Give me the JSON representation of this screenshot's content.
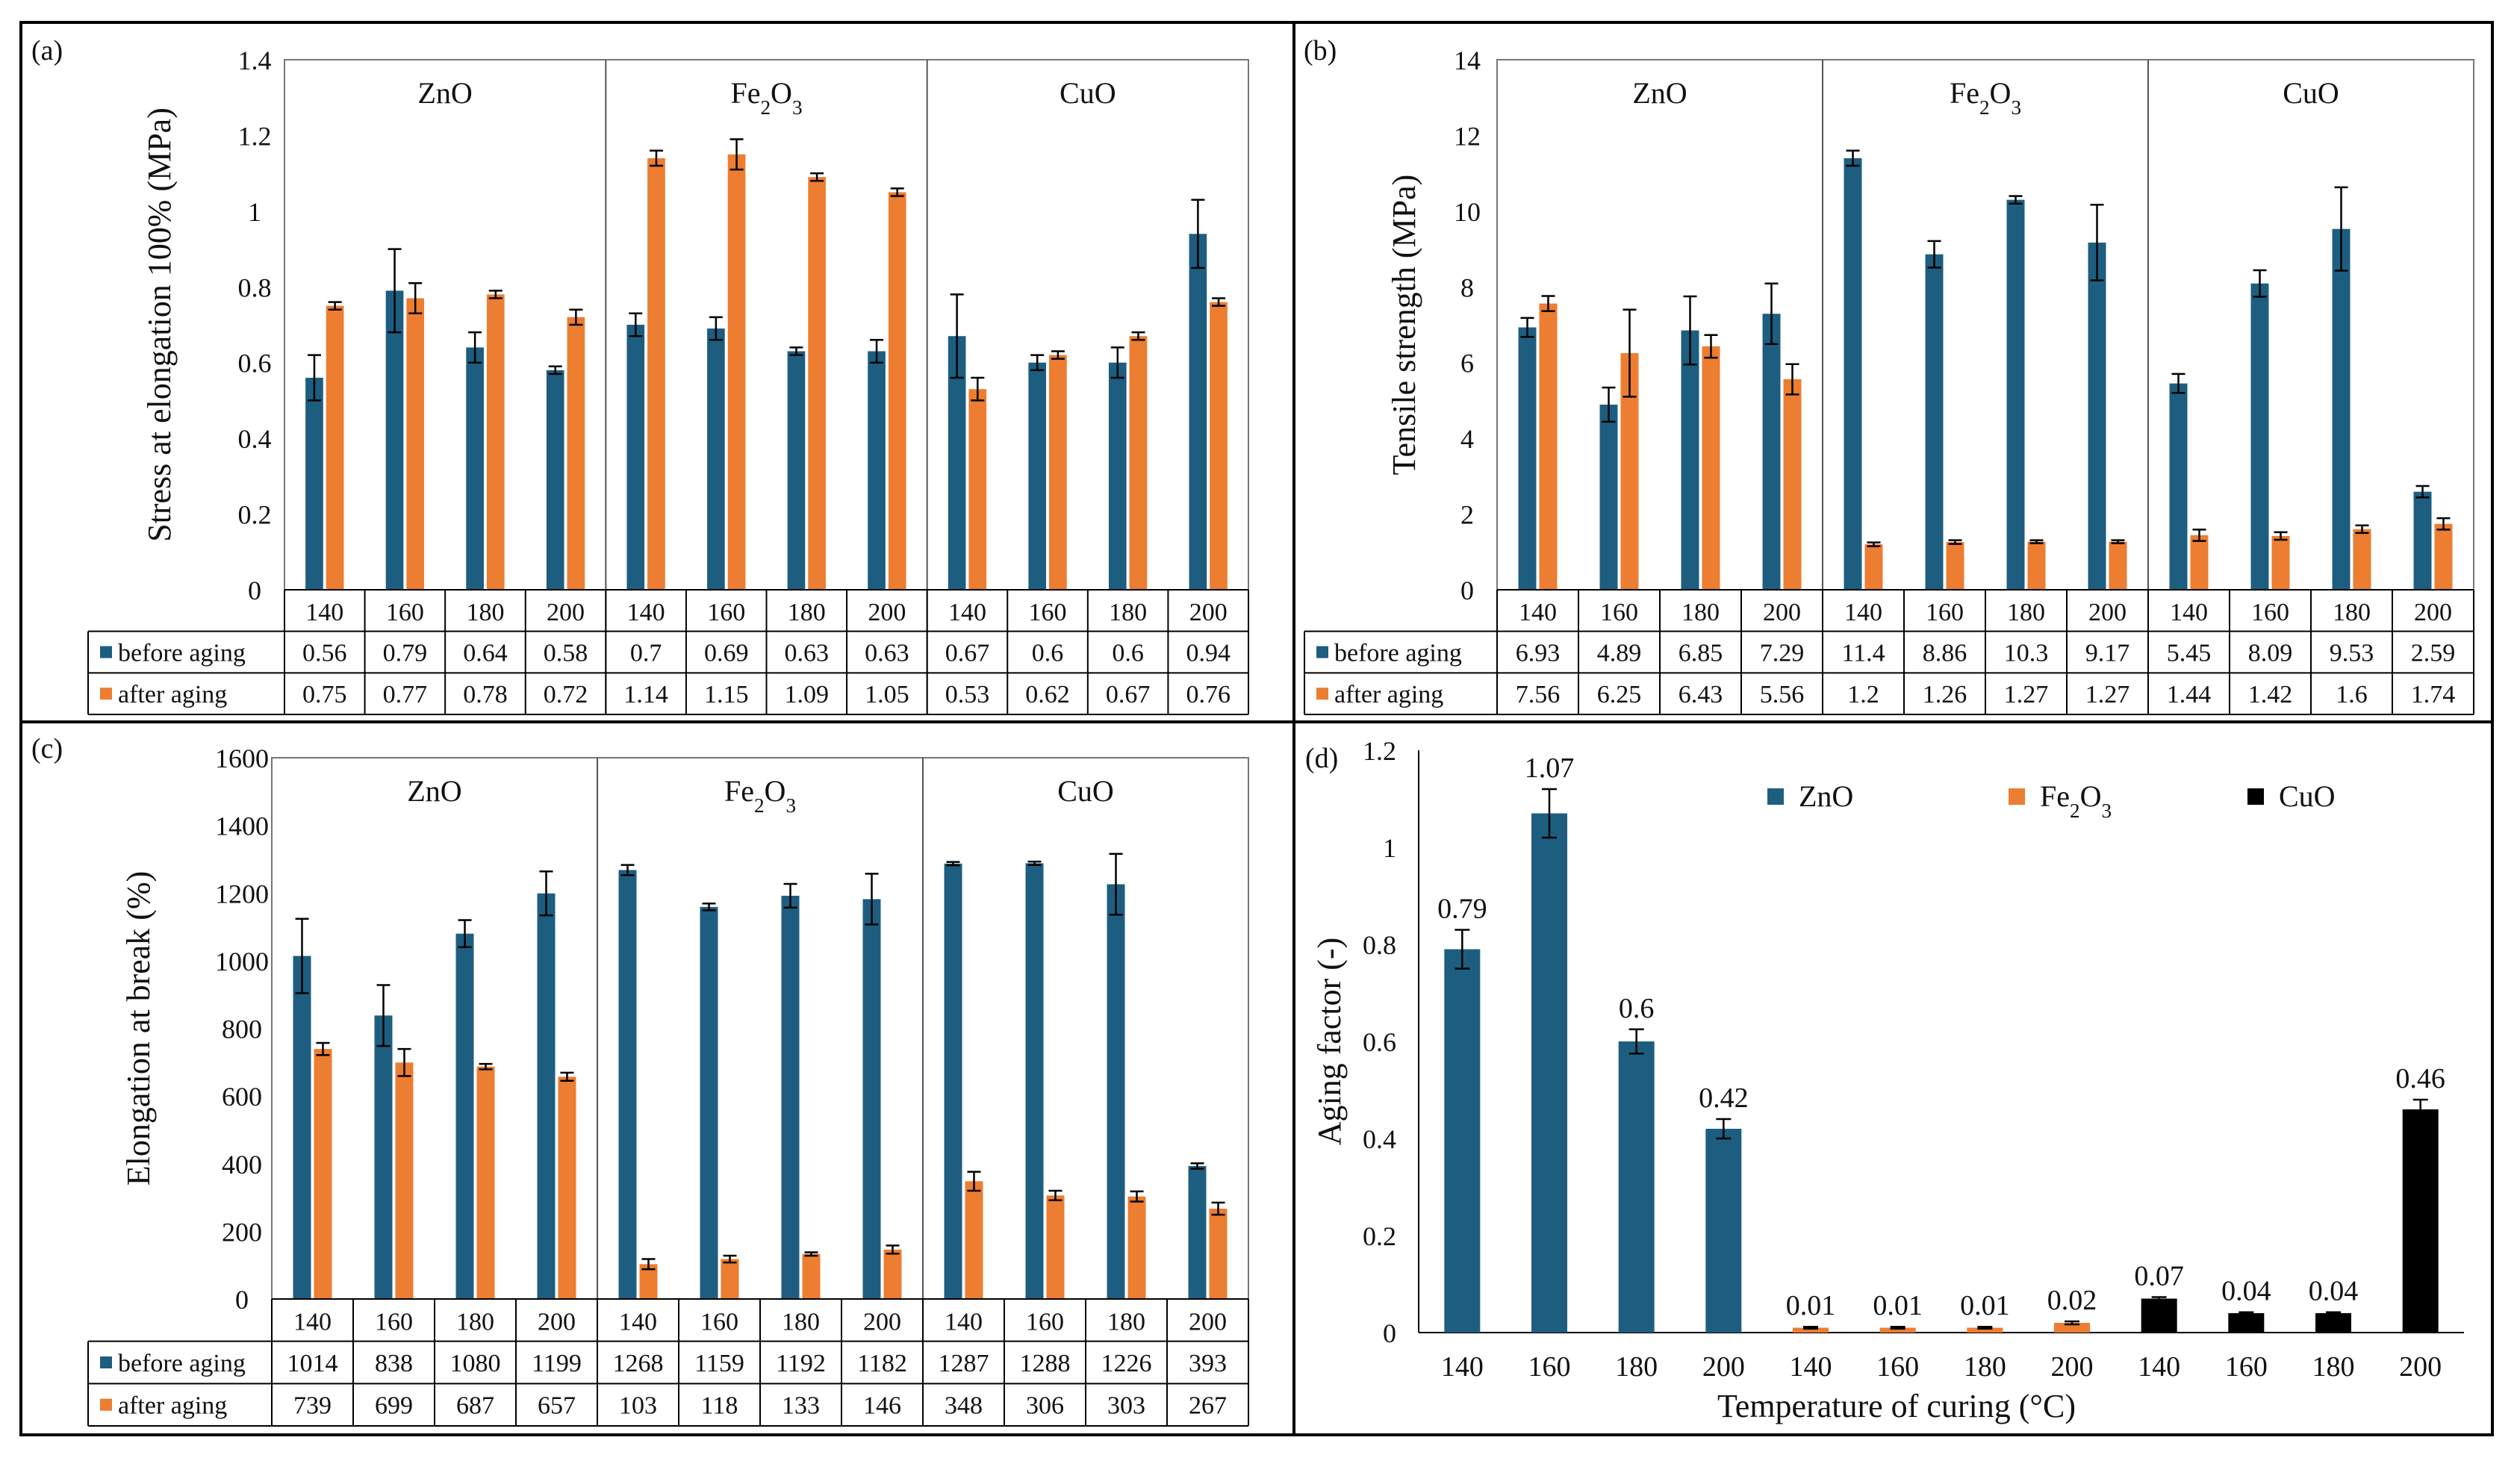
{
  "figure": {
    "colors": {
      "before": "#1d5e80",
      "after": "#ed7d31",
      "cuo": "#000000",
      "axis": "#000000",
      "grid": "#000000"
    }
  },
  "chart_data": [
    {
      "panel": "(a)",
      "type": "bar",
      "ylabel": "Stress at elongation 100% (MPa)",
      "ylim": [
        0,
        1.4
      ],
      "yticks": [
        "0",
        "0.2",
        "0.4",
        "0.6",
        "0.8",
        "1",
        "1.2",
        "1.4"
      ],
      "groups": [
        {
          "name": "ZnO",
          "sub": ""
        },
        {
          "name": "Fe",
          "sub": "2",
          "name2": "O",
          "sub2": "3"
        },
        {
          "name": "CuO",
          "sub": ""
        }
      ],
      "categories": [
        "140",
        "160",
        "180",
        "200",
        "140",
        "160",
        "180",
        "200",
        "140",
        "160",
        "180",
        "200"
      ],
      "series": [
        {
          "name": "before aging",
          "values": [
            0.56,
            0.79,
            0.64,
            0.58,
            0.7,
            0.69,
            0.63,
            0.63,
            0.67,
            0.6,
            0.6,
            0.94
          ],
          "errors": [
            0.06,
            0.11,
            0.04,
            0.01,
            0.03,
            0.03,
            0.01,
            0.03,
            0.11,
            0.02,
            0.04,
            0.09
          ],
          "labels": [
            "0.56",
            "0.79",
            "0.64",
            "0.58",
            "0.7",
            "0.69",
            "0.63",
            "0.63",
            "0.67",
            "0.6",
            "0.6",
            "0.94"
          ]
        },
        {
          "name": "after aging",
          "values": [
            0.75,
            0.77,
            0.78,
            0.72,
            1.14,
            1.15,
            1.09,
            1.05,
            0.53,
            0.62,
            0.67,
            0.76
          ],
          "errors": [
            0.01,
            0.04,
            0.01,
            0.02,
            0.02,
            0.04,
            0.01,
            0.01,
            0.03,
            0.01,
            0.01,
            0.01
          ],
          "labels": [
            "0.75",
            "0.77",
            "0.78",
            "0.72",
            "1.14",
            "1.15",
            "1.09",
            "1.05",
            "0.53",
            "0.62",
            "0.67",
            "0.76"
          ]
        }
      ]
    },
    {
      "panel": "(b)",
      "type": "bar",
      "ylabel": "Tensile strength (MPa)",
      "ylim": [
        0,
        14
      ],
      "yticks": [
        "0",
        "2",
        "4",
        "6",
        "8",
        "10",
        "12",
        "14"
      ],
      "groups": [
        {
          "name": "ZnO",
          "sub": ""
        },
        {
          "name": "Fe",
          "sub": "2",
          "name2": "O",
          "sub2": "3"
        },
        {
          "name": "CuO",
          "sub": ""
        }
      ],
      "categories": [
        "140",
        "160",
        "180",
        "200",
        "140",
        "160",
        "180",
        "200",
        "140",
        "160",
        "180",
        "200"
      ],
      "series": [
        {
          "name": "before aging",
          "values": [
            6.93,
            4.89,
            6.85,
            7.29,
            11.4,
            8.86,
            10.3,
            9.17,
            5.45,
            8.09,
            9.53,
            2.59
          ],
          "errors": [
            0.25,
            0.45,
            0.9,
            0.8,
            0.2,
            0.35,
            0.1,
            1.0,
            0.25,
            0.35,
            1.1,
            0.15
          ],
          "labels": [
            "6.93",
            "4.89",
            "6.85",
            "7.29",
            "11.4",
            "8.86",
            "10.3",
            "9.17",
            "5.45",
            "8.09",
            "9.53",
            "2.59"
          ]
        },
        {
          "name": "after aging",
          "values": [
            7.56,
            6.25,
            6.43,
            5.56,
            1.2,
            1.26,
            1.27,
            1.27,
            1.44,
            1.42,
            1.6,
            1.74
          ],
          "errors": [
            0.2,
            1.15,
            0.3,
            0.4,
            0.05,
            0.05,
            0.04,
            0.04,
            0.15,
            0.1,
            0.1,
            0.15
          ],
          "labels": [
            "7.56",
            "6.25",
            "6.43",
            "5.56",
            "1.2",
            "1.26",
            "1.27",
            "1.27",
            "1.44",
            "1.42",
            "1.6",
            "1.74"
          ]
        }
      ]
    },
    {
      "panel": "(c)",
      "type": "bar",
      "ylabel": "Elongation at break (%)",
      "ylim": [
        0,
        1600
      ],
      "yticks": [
        "0",
        "200",
        "400",
        "600",
        "800",
        "1000",
        "1200",
        "1400",
        "1600"
      ],
      "groups": [
        {
          "name": "ZnO",
          "sub": ""
        },
        {
          "name": "Fe",
          "sub": "2",
          "name2": "O",
          "sub2": "3"
        },
        {
          "name": "CuO",
          "sub": ""
        }
      ],
      "categories": [
        "140",
        "160",
        "180",
        "200",
        "140",
        "160",
        "180",
        "200",
        "140",
        "160",
        "180",
        "200"
      ],
      "series": [
        {
          "name": "before aging",
          "values": [
            1014,
            838,
            1080,
            1199,
            1268,
            1159,
            1192,
            1182,
            1287,
            1288,
            1226,
            393
          ],
          "errors": [
            110,
            90,
            40,
            65,
            15,
            10,
            35,
            75,
            5,
            5,
            90,
            8
          ],
          "labels": [
            "1014",
            "838",
            "1080",
            "1199",
            "1268",
            "1159",
            "1192",
            "1182",
            "1287",
            "1288",
            "1226",
            "393"
          ]
        },
        {
          "name": "after aging",
          "values": [
            739,
            699,
            687,
            657,
            103,
            118,
            133,
            146,
            348,
            306,
            303,
            267
          ],
          "errors": [
            18,
            40,
            8,
            12,
            15,
            10,
            5,
            12,
            28,
            14,
            15,
            18
          ],
          "labels": [
            "739",
            "699",
            "687",
            "657",
            "103",
            "118",
            "133",
            "146",
            "348",
            "306",
            "303",
            "267"
          ]
        }
      ]
    },
    {
      "panel": "(d)",
      "type": "bar",
      "ylabel": "Aging factor (-)",
      "xlabel": "Temperature of curing (°C)",
      "ylim": [
        0,
        1.2
      ],
      "yticks": [
        "0",
        "0.2",
        "0.4",
        "0.6",
        "0.8",
        "1",
        "1.2"
      ],
      "categories": [
        "140",
        "160",
        "180",
        "200",
        "140",
        "160",
        "180",
        "200",
        "140",
        "160",
        "180",
        "200"
      ],
      "legend": [
        {
          "name": "ZnO",
          "sub": "",
          "color": "#1d5e80"
        },
        {
          "name": "Fe",
          "sub": "2",
          "name2": "O",
          "sub2": "3",
          "color": "#ed7d31"
        },
        {
          "name": "CuO",
          "sub": "",
          "color": "#000000"
        }
      ],
      "values": [
        0.79,
        1.07,
        0.6,
        0.42,
        0.01,
        0.01,
        0.01,
        0.02,
        0.07,
        0.04,
        0.04,
        0.46
      ],
      "errors": [
        0.04,
        0.05,
        0.025,
        0.02,
        0.002,
        0.002,
        0.002,
        0.003,
        0.003,
        0.002,
        0.002,
        0.02
      ],
      "labels": [
        "0.79",
        "1.07",
        "0.6",
        "0.42",
        "0.01",
        "0.01",
        "0.01",
        "0.02",
        "0.07",
        "0.04",
        "0.04",
        "0.46"
      ],
      "bar_colors": [
        "#1d5e80",
        "#1d5e80",
        "#1d5e80",
        "#1d5e80",
        "#ed7d31",
        "#ed7d31",
        "#ed7d31",
        "#ed7d31",
        "#000000",
        "#000000",
        "#000000",
        "#000000"
      ]
    }
  ]
}
